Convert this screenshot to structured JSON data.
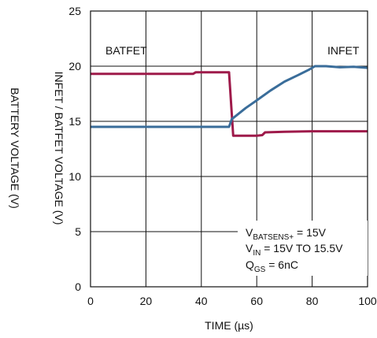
{
  "chart_data": {
    "type": "line",
    "xlabel": "TIME (µs)",
    "ylabel": "INFET / BATFET VOLTAGE (V)",
    "ylabel2": "BATTERY VOLTAGE (V)",
    "xlim": [
      0,
      100
    ],
    "ylim": [
      0,
      25
    ],
    "xticks": [
      0,
      20,
      40,
      60,
      80,
      100
    ],
    "yticks": [
      0,
      5,
      10,
      15,
      20,
      25
    ],
    "grid": true,
    "series": [
      {
        "name": "BATFET",
        "color": "#9e1a4a",
        "points": [
          [
            0,
            19.3
          ],
          [
            10,
            19.3
          ],
          [
            20,
            19.3
          ],
          [
            30,
            19.3
          ],
          [
            37,
            19.3
          ],
          [
            38,
            19.45
          ],
          [
            45,
            19.45
          ],
          [
            50,
            19.45
          ],
          [
            50.5,
            17.5
          ],
          [
            51.5,
            13.7
          ],
          [
            60,
            13.7
          ],
          [
            62,
            13.75
          ],
          [
            63,
            14.0
          ],
          [
            70,
            14.05
          ],
          [
            80,
            14.1
          ],
          [
            90,
            14.1
          ],
          [
            100,
            14.1
          ]
        ]
      },
      {
        "name": "INFET",
        "color": "#3a6d9a",
        "points": [
          [
            0,
            14.5
          ],
          [
            10,
            14.5
          ],
          [
            20,
            14.5
          ],
          [
            30,
            14.5
          ],
          [
            40,
            14.5
          ],
          [
            50,
            14.5
          ],
          [
            51,
            15.2
          ],
          [
            53,
            15.6
          ],
          [
            56,
            16.2
          ],
          [
            60,
            16.9
          ],
          [
            65,
            17.8
          ],
          [
            70,
            18.6
          ],
          [
            75,
            19.2
          ],
          [
            79,
            19.7
          ],
          [
            81,
            20.0
          ],
          [
            85,
            20.0
          ],
          [
            90,
            19.9
          ],
          [
            95,
            19.95
          ],
          [
            100,
            19.85
          ]
        ]
      }
    ],
    "series_labels": {
      "batfet": "BATFET",
      "infet": "INFET"
    },
    "annotation": {
      "line1": {
        "main": "V",
        "sub": "BATSENS+",
        "rest": " = 15V"
      },
      "line2": {
        "main": "V",
        "sub": "IN",
        "rest": " = 15V TO 15.5V"
      },
      "line3": {
        "main": "Q",
        "sub": "GS",
        "rest": " = 6nC"
      }
    }
  }
}
